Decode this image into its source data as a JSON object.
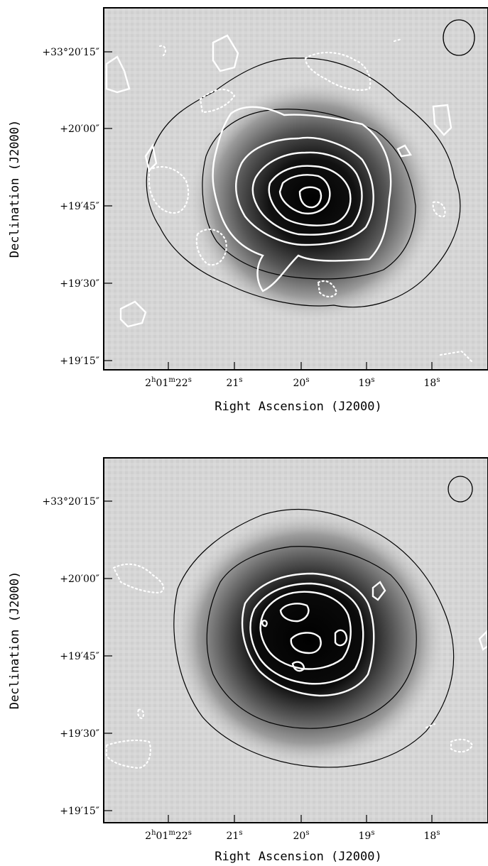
{
  "figure": {
    "panels": [
      {
        "id": "top",
        "ra_tick_labels": [
          {
            "h": "2",
            "hu": "h",
            "m": "01",
            "mu": "m",
            "s": "22",
            "su": "s"
          },
          {
            "s": "21",
            "su": "s"
          },
          {
            "s": "20",
            "su": "s"
          },
          {
            "s": "19",
            "su": "s"
          },
          {
            "s": "18",
            "su": "s"
          }
        ],
        "dec_tick_labels": [
          "+33°20′15″",
          "+20′00″",
          "+19′45″",
          "+19′30″",
          "+19′15″"
        ],
        "xlabel": "Right Ascension (J2000)",
        "ylabel": "Declination (J2000)"
      },
      {
        "id": "bottom",
        "ra_tick_labels": [
          {
            "h": "2",
            "hu": "h",
            "m": "01",
            "mu": "m",
            "s": "22",
            "su": "s"
          },
          {
            "s": "21",
            "su": "s"
          },
          {
            "s": "20",
            "su": "s"
          },
          {
            "s": "19",
            "su": "s"
          },
          {
            "s": "18",
            "su": "s"
          }
        ],
        "dec_tick_labels": [
          "+33°20′15″",
          "+20′00″",
          "+19′45″",
          "+19′30″",
          "+19′15″"
        ],
        "xlabel": "Right Ascension (J2000)",
        "ylabel": "Declination (J2000)"
      }
    ],
    "colors": {
      "background": "#ffffff",
      "axes": "#000000",
      "contour_light": "#ffffff",
      "contour_dark": "#000000"
    }
  }
}
